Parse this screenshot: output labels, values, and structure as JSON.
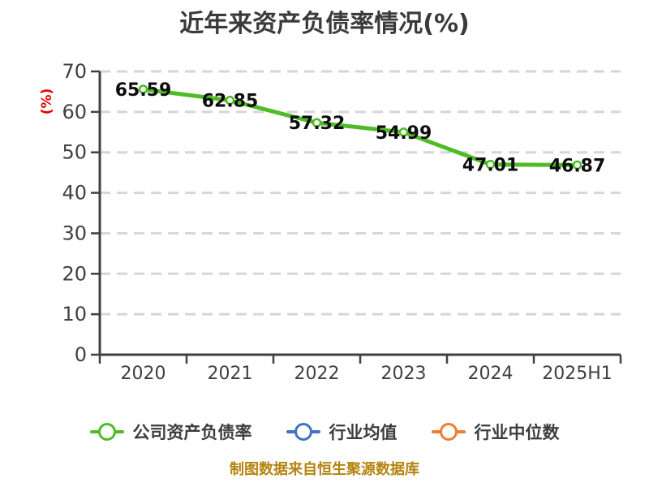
{
  "chart_data": {
    "type": "line",
    "title": "近年来资产负债率情况(%)",
    "ylabel": "(%)",
    "xlabel": "",
    "categories": [
      "2020",
      "2021",
      "2022",
      "2023",
      "2024",
      "2025H1"
    ],
    "series": [
      {
        "name": "公司资产负债率",
        "color": "#4fbc26",
        "values": [
          65.59,
          62.85,
          57.32,
          54.99,
          47.01,
          46.87
        ]
      },
      {
        "name": "行业均值",
        "color": "#4472c4",
        "values": []
      },
      {
        "name": "行业中位数",
        "color": "#ed7d31",
        "values": []
      }
    ],
    "ylim": [
      0,
      70
    ],
    "yticks": [
      0,
      10,
      20,
      30,
      40,
      50,
      60,
      70
    ],
    "grid": "horizontal-dashed",
    "legend_position": "bottom",
    "data_labels_visible": true
  },
  "legend": {
    "items": [
      {
        "label": "公司资产负债率",
        "color": "#4fbc26"
      },
      {
        "label": "行业均值",
        "color": "#4472c4"
      },
      {
        "label": "行业中位数",
        "color": "#ed7d31"
      }
    ]
  },
  "footer": {
    "source_note": "制图数据来自恒生聚源数据库"
  },
  "colors": {
    "title_text": "#3a3a3a",
    "axis": "#404040",
    "tick_label": "#404040",
    "grid": "#d6d6d6",
    "y_unit_label": "#e60000",
    "data_label": "#0d0d0d",
    "footer_text": "#b5830f",
    "marker_fill": "#ffffff"
  }
}
